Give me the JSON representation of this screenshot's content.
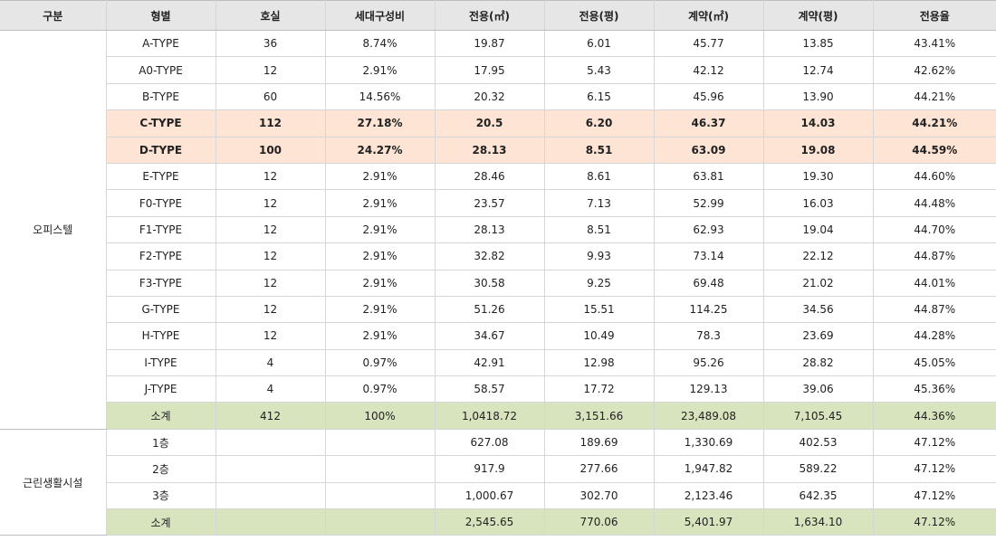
{
  "headers": [
    "구분",
    "형별",
    "호실",
    "세대구성비",
    "전용(㎡)",
    "전용(평)",
    "계약(㎡)",
    "계약(평)",
    "전용율"
  ],
  "officetel": {
    "label": "오피스텔",
    "rows": [
      {
        "type": "A-TYPE",
        "rooms": "36",
        "ratio": "8.74%",
        "area_m2": "19.87",
        "area_py": "6.01",
        "contract_m2": "45.77",
        "contract_py": "13.85",
        "eff": "43.41%"
      },
      {
        "type": "A0-TYPE",
        "rooms": "12",
        "ratio": "2.91%",
        "area_m2": "17.95",
        "area_py": "5.43",
        "contract_m2": "42.12",
        "contract_py": "12.74",
        "eff": "42.62%"
      },
      {
        "type": "B-TYPE",
        "rooms": "60",
        "ratio": "14.56%",
        "area_m2": "20.32",
        "area_py": "6.15",
        "contract_m2": "45.96",
        "contract_py": "13.90",
        "eff": "44.21%"
      },
      {
        "type": "C-TYPE",
        "rooms": "112",
        "ratio": "27.18%",
        "area_m2": "20.5",
        "area_py": "6.20",
        "contract_m2": "46.37",
        "contract_py": "14.03",
        "eff": "44.21%"
      },
      {
        "type": "D-TYPE",
        "rooms": "100",
        "ratio": "24.27%",
        "area_m2": "28.13",
        "area_py": "8.51",
        "contract_m2": "63.09",
        "contract_py": "19.08",
        "eff": "44.59%"
      },
      {
        "type": "E-TYPE",
        "rooms": "12",
        "ratio": "2.91%",
        "area_m2": "28.46",
        "area_py": "8.61",
        "contract_m2": "63.81",
        "contract_py": "19.30",
        "eff": "44.60%"
      },
      {
        "type": "F0-TYPE",
        "rooms": "12",
        "ratio": "2.91%",
        "area_m2": "23.57",
        "area_py": "7.13",
        "contract_m2": "52.99",
        "contract_py": "16.03",
        "eff": "44.48%"
      },
      {
        "type": "F1-TYPE",
        "rooms": "12",
        "ratio": "2.91%",
        "area_m2": "28.13",
        "area_py": "8.51",
        "contract_m2": "62.93",
        "contract_py": "19.04",
        "eff": "44.70%"
      },
      {
        "type": "F2-TYPE",
        "rooms": "12",
        "ratio": "2.91%",
        "area_m2": "32.82",
        "area_py": "9.93",
        "contract_m2": "73.14",
        "contract_py": "22.12",
        "eff": "44.87%"
      },
      {
        "type": "F3-TYPE",
        "rooms": "12",
        "ratio": "2.91%",
        "area_m2": "30.58",
        "area_py": "9.25",
        "contract_m2": "69.48",
        "contract_py": "21.02",
        "eff": "44.01%"
      },
      {
        "type": "G-TYPE",
        "rooms": "12",
        "ratio": "2.91%",
        "area_m2": "51.26",
        "area_py": "15.51",
        "contract_m2": "114.25",
        "contract_py": "34.56",
        "eff": "44.87%"
      },
      {
        "type": "H-TYPE",
        "rooms": "12",
        "ratio": "2.91%",
        "area_m2": "34.67",
        "area_py": "10.49",
        "contract_m2": "78.3",
        "contract_py": "23.69",
        "eff": "44.28%"
      },
      {
        "type": "I-TYPE",
        "rooms": "4",
        "ratio": "0.97%",
        "area_m2": "42.91",
        "area_py": "12.98",
        "contract_m2": "95.26",
        "contract_py": "28.82",
        "eff": "45.05%"
      },
      {
        "type": "J-TYPE",
        "rooms": "4",
        "ratio": "0.97%",
        "area_m2": "58.57",
        "area_py": "17.72",
        "contract_m2": "129.13",
        "contract_py": "39.06",
        "eff": "45.36%"
      }
    ],
    "subtotal": {
      "type": "소계",
      "rooms": "412",
      "ratio": "100%",
      "area_m2": "1,0418.72",
      "area_py": "3,151.66",
      "contract_m2": "23,489.08",
      "contract_py": "7,105.45",
      "eff": "44.36%"
    }
  },
  "retail": {
    "label": "근린생활시설",
    "rows": [
      {
        "type": "1층",
        "rooms": "",
        "ratio": "",
        "area_m2": "627.08",
        "area_py": "189.69",
        "contract_m2": "1,330.69",
        "contract_py": "402.53",
        "eff": "47.12%"
      },
      {
        "type": "2층",
        "rooms": "",
        "ratio": "",
        "area_m2": "917.9",
        "area_py": "277.66",
        "contract_m2": "1,947.82",
        "contract_py": "589.22",
        "eff": "47.12%"
      },
      {
        "type": "3층",
        "rooms": "",
        "ratio": "",
        "area_m2": "1,000.67",
        "area_py": "302.70",
        "contract_m2": "2,123.46",
        "contract_py": "642.35",
        "eff": "47.12%"
      }
    ],
    "subtotal": {
      "type": "소계",
      "rooms": "",
      "ratio": "",
      "area_m2": "2,545.65",
      "area_py": "770.06",
      "contract_m2": "5,401.97",
      "contract_py": "1,634.10",
      "eff": "47.12%"
    }
  }
}
